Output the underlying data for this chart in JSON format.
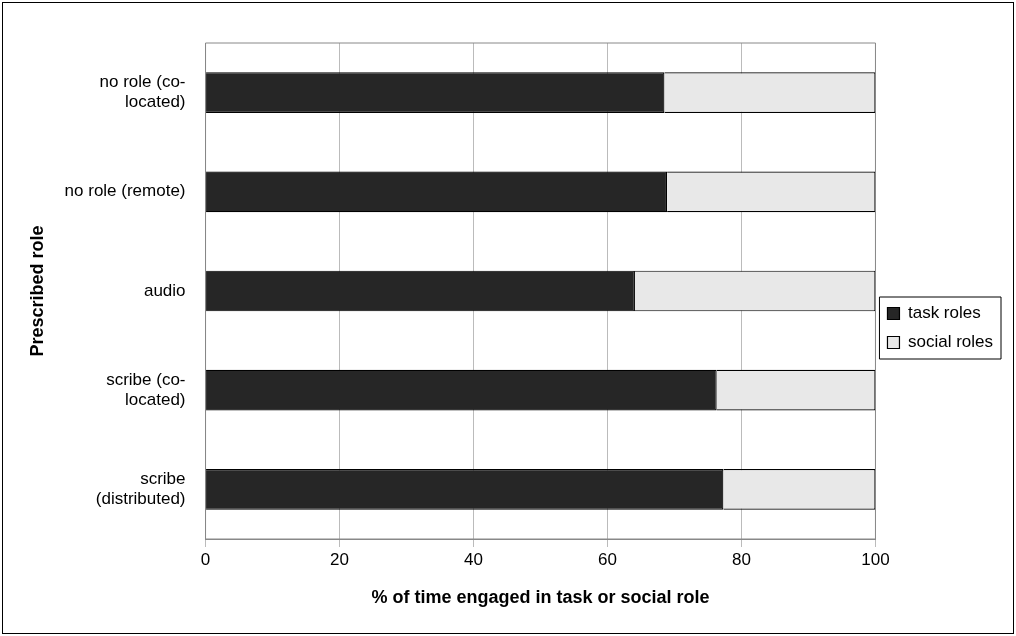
{
  "chart_data": {
    "type": "bar",
    "orientation": "horizontal",
    "stacked": true,
    "categories": [
      "no role (co-\nlocated)",
      "no role (remote)",
      "audio",
      "scribe (co-\nlocated)",
      "scribe\n(distributed)"
    ],
    "series": [
      {
        "name": "task roles",
        "color": "#262626",
        "values": [
          68.5,
          68.9,
          64.1,
          76.3,
          77.3
        ]
      },
      {
        "name": "social roles",
        "color": "#e8e8e8",
        "values": [
          31.5,
          31.1,
          35.9,
          23.7,
          22.7
        ]
      }
    ],
    "xlabel": "% of time engaged in task or social role",
    "ylabel": "Prescribed role",
    "xlim": [
      0,
      100
    ],
    "xticks": [
      0,
      20,
      40,
      60,
      80,
      100
    ],
    "grid": "x",
    "legend": "right"
  }
}
